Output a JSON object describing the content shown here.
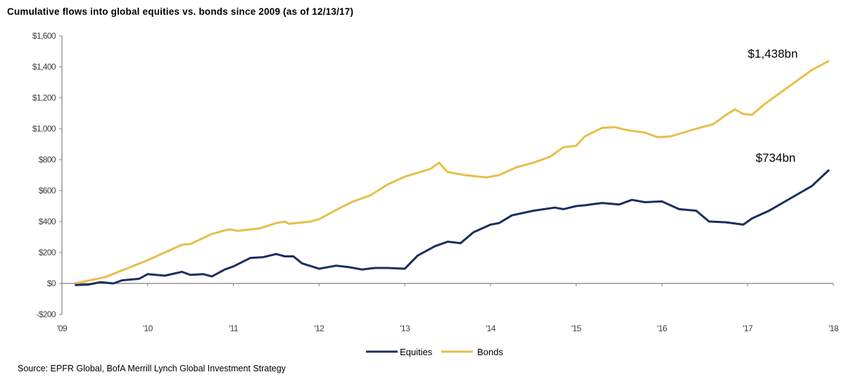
{
  "chart_data": {
    "type": "line",
    "title": "Cumulative flows into global equities vs. bonds since 2009 (as of 12/13/17)",
    "xlabel": "",
    "ylabel": "",
    "xlim": [
      2009,
      2018
    ],
    "ylim": [
      -200,
      1600
    ],
    "x_ticks": [
      2009,
      2010,
      2011,
      2012,
      2013,
      2014,
      2015,
      2016,
      2017,
      2018
    ],
    "x_tick_labels": [
      "'09",
      "'10",
      "'11",
      "'12",
      "'13",
      "'14",
      "'15",
      "'16",
      "'17",
      "'18"
    ],
    "y_ticks": [
      -200,
      0,
      200,
      400,
      600,
      800,
      1000,
      1200,
      1400,
      1600
    ],
    "y_tick_labels": [
      "-$200",
      "$0",
      "$200",
      "$400",
      "$600",
      "$800",
      "$1,000",
      "$1,200",
      "$1,400",
      "$1,600"
    ],
    "grid": false,
    "legend_position": "bottom-center",
    "series": [
      {
        "name": "Equities",
        "color": "#1b2f5e",
        "x": [
          2009.15,
          2009.3,
          2009.45,
          2009.6,
          2009.7,
          2009.9,
          2010.0,
          2010.2,
          2010.4,
          2010.5,
          2010.65,
          2010.75,
          2010.9,
          2011.0,
          2011.2,
          2011.35,
          2011.5,
          2011.6,
          2011.7,
          2011.8,
          2012.0,
          2012.2,
          2012.35,
          2012.5,
          2012.65,
          2012.8,
          2013.0,
          2013.15,
          2013.35,
          2013.5,
          2013.65,
          2013.8,
          2014.0,
          2014.1,
          2014.25,
          2014.5,
          2014.75,
          2014.85,
          2015.0,
          2015.1,
          2015.3,
          2015.5,
          2015.65,
          2015.8,
          2016.0,
          2016.2,
          2016.4,
          2016.55,
          2016.75,
          2016.95,
          2017.05,
          2017.25,
          2017.5,
          2017.75,
          2017.95
        ],
        "values": [
          -10,
          -8,
          8,
          0,
          20,
          30,
          60,
          50,
          75,
          55,
          60,
          45,
          90,
          110,
          165,
          170,
          190,
          175,
          175,
          130,
          95,
          115,
          105,
          90,
          100,
          100,
          95,
          180,
          240,
          270,
          260,
          330,
          380,
          390,
          440,
          470,
          490,
          480,
          500,
          505,
          520,
          510,
          540,
          525,
          530,
          480,
          470,
          400,
          395,
          380,
          420,
          470,
          550,
          630,
          734
        ]
      },
      {
        "name": "Bonds",
        "color": "#e8be4b",
        "x": [
          2009.15,
          2009.5,
          2010.0,
          2010.4,
          2010.5,
          2010.75,
          2010.95,
          2011.05,
          2011.3,
          2011.5,
          2011.6,
          2011.65,
          2011.9,
          2012.0,
          2012.25,
          2012.4,
          2012.6,
          2012.8,
          2013.0,
          2013.3,
          2013.4,
          2013.5,
          2013.7,
          2013.95,
          2014.1,
          2014.3,
          2014.5,
          2014.7,
          2014.85,
          2015.0,
          2015.1,
          2015.3,
          2015.45,
          2015.6,
          2015.8,
          2015.95,
          2016.1,
          2016.4,
          2016.6,
          2016.75,
          2016.85,
          2016.95,
          2017.05,
          2017.2,
          2017.5,
          2017.75,
          2017.95
        ],
        "values": [
          0,
          40,
          150,
          250,
          255,
          320,
          350,
          340,
          355,
          390,
          400,
          385,
          400,
          415,
          490,
          530,
          570,
          640,
          690,
          740,
          780,
          720,
          700,
          685,
          700,
          750,
          780,
          820,
          880,
          890,
          950,
          1005,
          1010,
          990,
          975,
          945,
          950,
          1000,
          1030,
          1090,
          1125,
          1095,
          1090,
          1160,
          1280,
          1380,
          1438
        ]
      }
    ],
    "annotations": [
      {
        "text": "$1,438bn",
        "series": "Bonds"
      },
      {
        "text": "$734bn",
        "series": "Equities"
      }
    ],
    "source": "Source: EPFR Global, BofA Merrill Lynch Global Investment Strategy"
  }
}
